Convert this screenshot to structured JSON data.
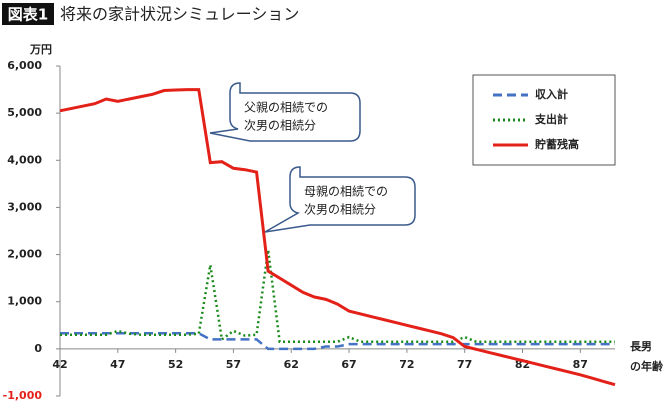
{
  "chart_data": {
    "type": "line",
    "title_badge": "図表1",
    "title": "将来の家計状況シミュレーション",
    "y_unit": "万円",
    "x_label": [
      "長男",
      "の年齢"
    ],
    "x": [
      42,
      43,
      44,
      45,
      46,
      47,
      48,
      49,
      50,
      51,
      52,
      53,
      54,
      55,
      56,
      57,
      58,
      59,
      60,
      61,
      62,
      63,
      64,
      65,
      66,
      67,
      68,
      69,
      70,
      71,
      72,
      73,
      74,
      75,
      76,
      77,
      78,
      79,
      80,
      81,
      82,
      83,
      84,
      85,
      86,
      87,
      88,
      89,
      90
    ],
    "series": [
      {
        "name": "収入計",
        "color": "#4472c4",
        "dash": "dashed",
        "values": [
          330,
          330,
          330,
          330,
          330,
          330,
          330,
          330,
          330,
          330,
          330,
          330,
          330,
          200,
          200,
          200,
          200,
          200,
          0,
          0,
          0,
          0,
          0,
          50,
          50,
          100,
          100,
          100,
          100,
          100,
          100,
          100,
          100,
          100,
          100,
          100,
          100,
          100,
          100,
          100,
          100,
          100,
          100,
          100,
          100,
          100,
          100,
          100,
          100
        ]
      },
      {
        "name": "支出計",
        "color": "#1a8a1a",
        "dash": "dotted",
        "values": [
          300,
          300,
          300,
          300,
          300,
          380,
          320,
          300,
          300,
          300,
          300,
          300,
          320,
          1780,
          200,
          380,
          280,
          300,
          2100,
          150,
          150,
          150,
          150,
          150,
          150,
          250,
          150,
          150,
          150,
          150,
          150,
          150,
          150,
          150,
          150,
          250,
          150,
          150,
          150,
          150,
          150,
          150,
          150,
          150,
          150,
          150,
          150,
          150,
          150
        ]
      },
      {
        "name": "貯蓄残高",
        "color": "#e32119",
        "dash": "solid",
        "values": [
          5050,
          5100,
          5150,
          5200,
          5300,
          5250,
          5300,
          5350,
          5400,
          5480,
          5490,
          5500,
          5500,
          3950,
          3970,
          3830,
          3800,
          3750,
          1650,
          1500,
          1350,
          1200,
          1100,
          1050,
          950,
          800,
          740,
          680,
          620,
          560,
          500,
          440,
          380,
          320,
          240,
          50,
          -10,
          -70,
          -130,
          -190,
          -250,
          -310,
          -370,
          -430,
          -490,
          -550,
          -620,
          -690,
          -760
        ]
      }
    ],
    "xlim": [
      42,
      90
    ],
    "xticks": [
      42,
      47,
      52,
      57,
      62,
      67,
      72,
      77,
      82,
      87
    ],
    "ylim": [
      -1000,
      6000
    ],
    "yticks": [
      {
        "value": -1000,
        "label": "-1,000"
      },
      0,
      {
        "value": 1000,
        "label": "1,000"
      },
      {
        "value": 2000,
        "label": "2,000"
      },
      {
        "value": 3000,
        "label": "3,000"
      },
      {
        "value": 4000,
        "label": "4,000"
      },
      {
        "value": 5000,
        "label": "5,000"
      },
      {
        "value": 6000,
        "label": "6,000"
      }
    ],
    "negative_tick_color": "#e32119",
    "annotations": [
      {
        "lines": [
          "父親の相続での",
          "次男の相続分"
        ]
      },
      {
        "lines": [
          "母親の相続での",
          "次男の相続分"
        ]
      }
    ],
    "legend": "upper right"
  }
}
